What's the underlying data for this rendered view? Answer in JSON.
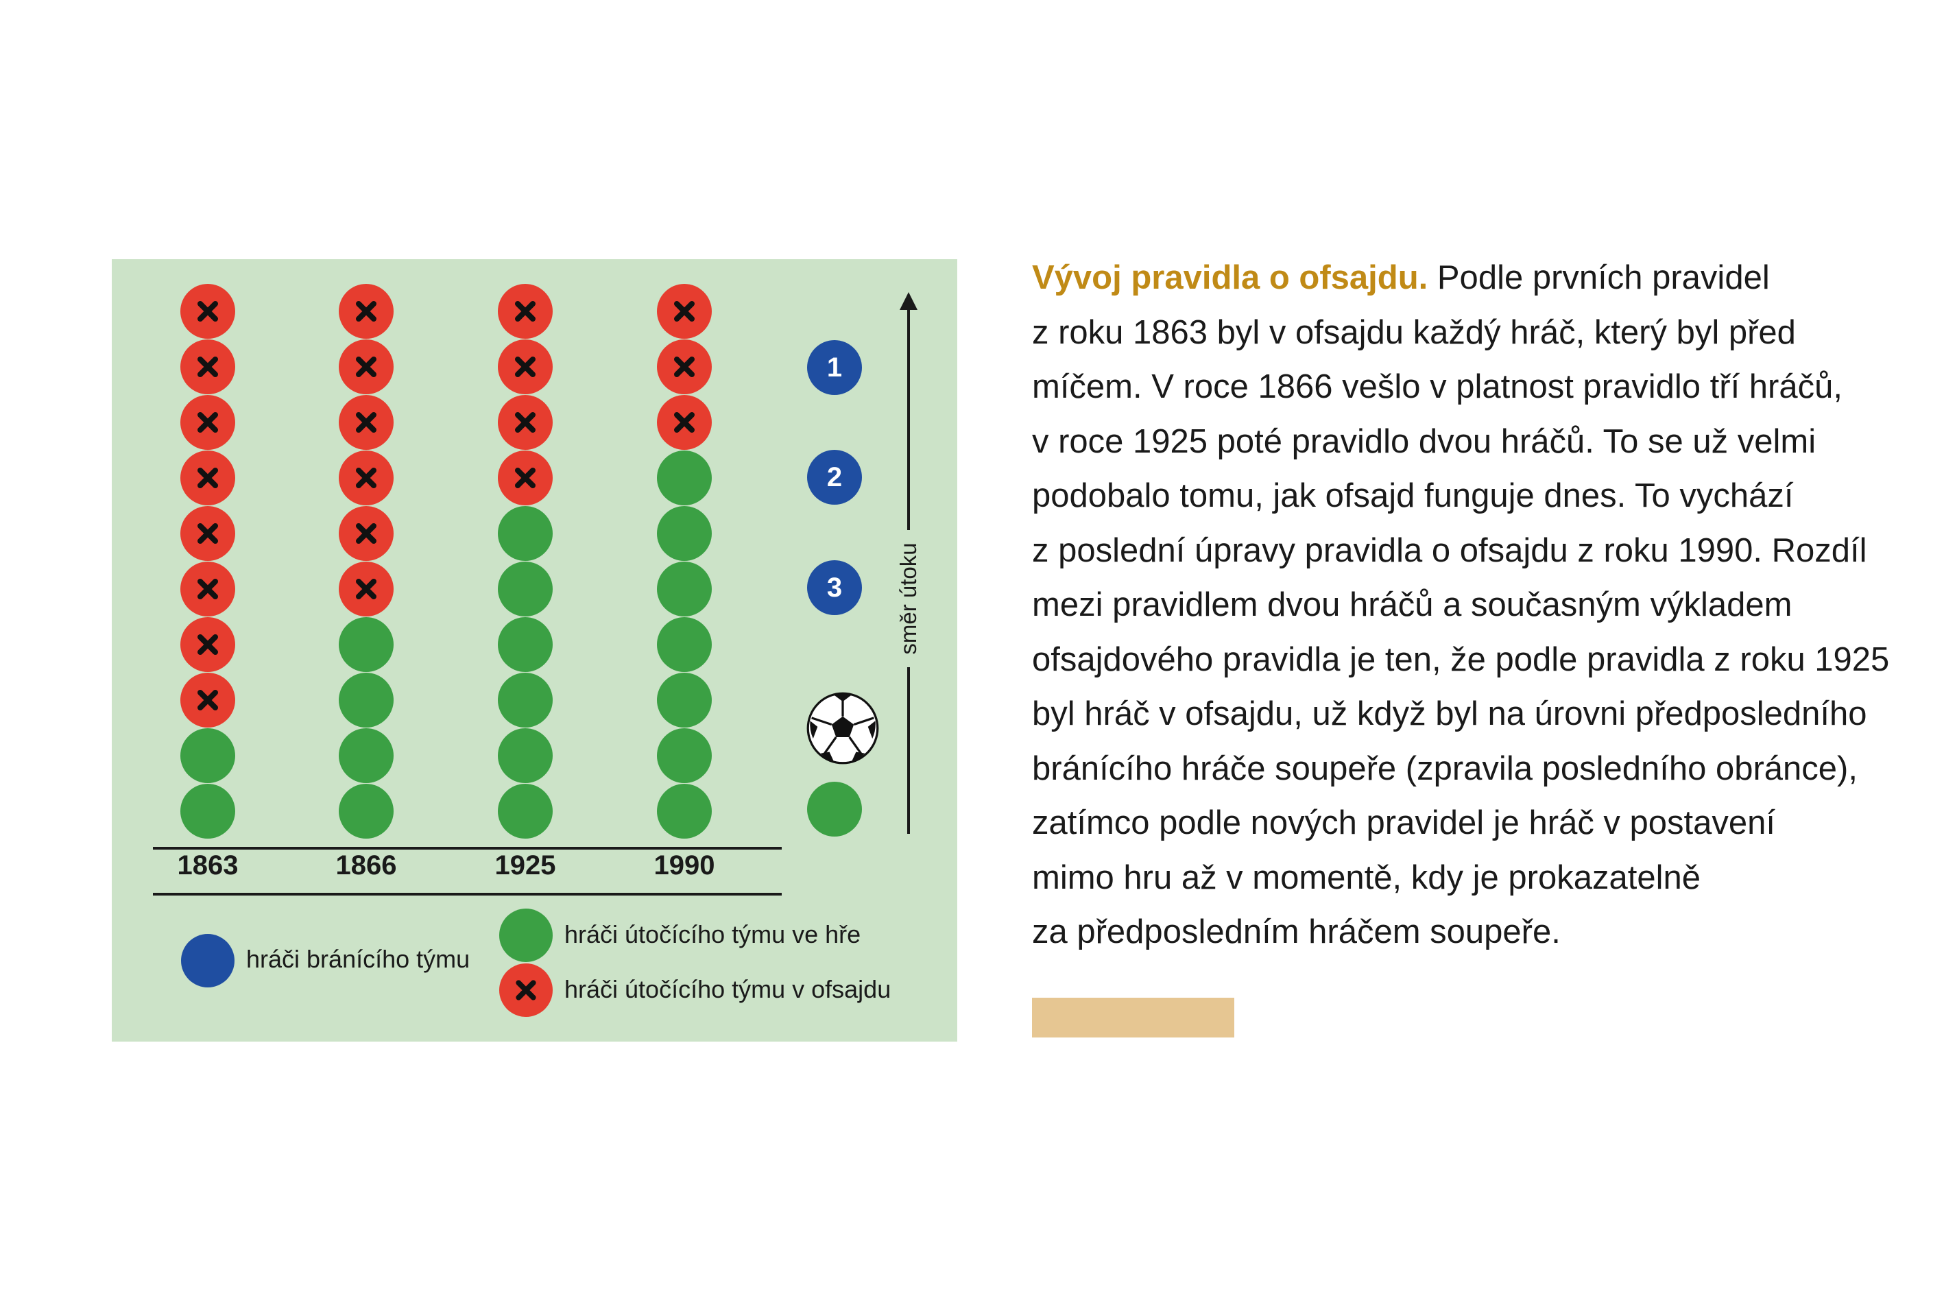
{
  "diagram": {
    "years": [
      "1863",
      "1866",
      "1925",
      "1990"
    ],
    "columns": [
      {
        "year": "1863",
        "offside_players": 8,
        "active_players": 2
      },
      {
        "year": "1866",
        "offside_players": 6,
        "active_players": 4
      },
      {
        "year": "1925",
        "offside_players": 4,
        "active_players": 6
      },
      {
        "year": "1990",
        "offside_players": 3,
        "active_players": 7
      }
    ],
    "defenders": [
      "1",
      "2",
      "3"
    ],
    "direction_label": "směr útoku",
    "legend": {
      "defending": "hráči bránícího týmu",
      "attacking_active": "hráči útočícího týmu ve hře",
      "attacking_offside": "hráči útočícího týmu v ofsajdu"
    },
    "colors": {
      "background": "#cce3c8",
      "offside": "#e63d2f",
      "active": "#3ba044",
      "defender": "#1f4ea1",
      "headline": "#c08a16",
      "accent_bar": "#e6c692"
    },
    "icons": {
      "offside_mark": "x-mark-icon",
      "ball": "soccer-ball-icon",
      "direction": "arrow-up-icon"
    }
  },
  "article": {
    "headline": "Vývoj pravidla o ofsajdu.",
    "line_1": " Podle prvních pravidel",
    "line_2": "z roku 1863 byl v ofsajdu každý hráč, který byl před",
    "line_3": "míčem. V roce 1866 vešlo v platnost pravidlo tří hráčů,",
    "line_4": "v roce 1925 poté pravidlo dvou hráčů. To se už velmi",
    "line_5": "podobalo tomu, jak ofsajd funguje dnes. To vychází",
    "line_6": "z poslední úpravy pravidla o ofsajdu z roku 1990. Rozdíl",
    "line_7": "mezi pravidlem dvou hráčů a současným výkladem",
    "line_8": "ofsajdového pravidla je ten, že podle pravidla z roku 1925",
    "line_9": "byl hráč v ofsajdu, už když byl na úrovni předposledního",
    "line_10": "bránícího hráče soupeře (zpravila posledního obránce),",
    "line_11": "zatímco podle nových pravidel je hráč v postavení",
    "line_12": "mimo hru až v momentě, kdy je prokazatelně",
    "line_13": "za předposledním hráčem soupeře."
  }
}
